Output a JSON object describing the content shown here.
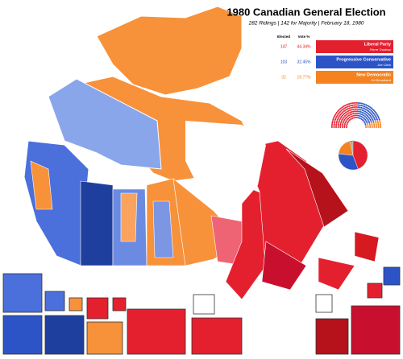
{
  "header": {
    "title": "1980 Canadian General Election",
    "subtitle": "282 Ridings | 142 for Majority | February 18, 1980"
  },
  "table": {
    "columns": [
      "Elected",
      "Vote %"
    ],
    "parties": [
      {
        "name": "Liberal Party",
        "leader": "Pierre Trudeau",
        "elected": 147,
        "vote": 44.34,
        "vote_label": "44.34%",
        "color": "#e4202f",
        "text_color": "#d71920"
      },
      {
        "name": "Progressive Conservative",
        "leader": "Joe Clark",
        "elected": 103,
        "vote": 32.45,
        "vote_label": "32.45%",
        "color": "#2d54c6",
        "text_color": "#2a4fbf"
      },
      {
        "name": "New Democratic",
        "leader": "Ed Broadbent",
        "elected": 32,
        "vote": 19.77,
        "vote_label": "19.77%",
        "color": "#f58220",
        "text_color": "#f58220"
      }
    ]
  }
}
